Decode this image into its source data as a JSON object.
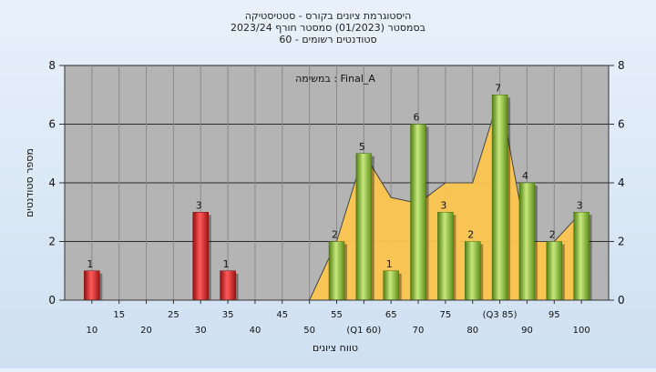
{
  "title_lines": [
    "היסטוגרמת ציונים בקורס - סטטיסטיקה",
    "בסמסטר  (01/2023)  סמסטר חורף  2023/24",
    "סטודנטים רשומים - 60"
  ],
  "chart_data": {
    "type": "bar",
    "annotation": "במשימה : Final_A",
    "xlabel": "טווח ציונים",
    "ylabel": "מספר סטודנטים",
    "ylim": [
      0,
      8
    ],
    "yticks": [
      0,
      2,
      4,
      6,
      8
    ],
    "categories": [
      10,
      15,
      20,
      25,
      30,
      35,
      40,
      45,
      50,
      55,
      60,
      65,
      70,
      75,
      80,
      85,
      90,
      95,
      100
    ],
    "x_tick_labels": [
      "10",
      "15",
      "20",
      "25",
      "30",
      "35",
      "40",
      "45",
      "50",
      "55",
      "(Q1 60)",
      "65",
      "70",
      "75",
      "80",
      "(Q3 85)",
      "90",
      "95",
      "100"
    ],
    "values": [
      1,
      0,
      0,
      0,
      3,
      1,
      0,
      0,
      0,
      2,
      5,
      1,
      6,
      3,
      2,
      7,
      4,
      2,
      3
    ],
    "bar_colors": [
      "#e02a2a",
      "#e02a2a",
      "#e02a2a",
      "#e02a2a",
      "#e02a2a",
      "#e02a2a",
      "#e02a2a",
      "#e02a2a",
      "#e02a2a",
      "#8cc63f",
      "#8cc63f",
      "#8cc63f",
      "#8cc63f",
      "#8cc63f",
      "#8cc63f",
      "#8cc63f",
      "#8cc63f",
      "#8cc63f",
      "#8cc63f"
    ],
    "area_values": [
      0,
      0,
      0,
      0,
      0,
      0,
      0,
      0,
      0,
      2,
      5,
      3.5,
      3.3,
      4,
      4,
      7,
      2,
      2,
      3
    ],
    "area_color": "#fcc64f",
    "grid": true
  }
}
